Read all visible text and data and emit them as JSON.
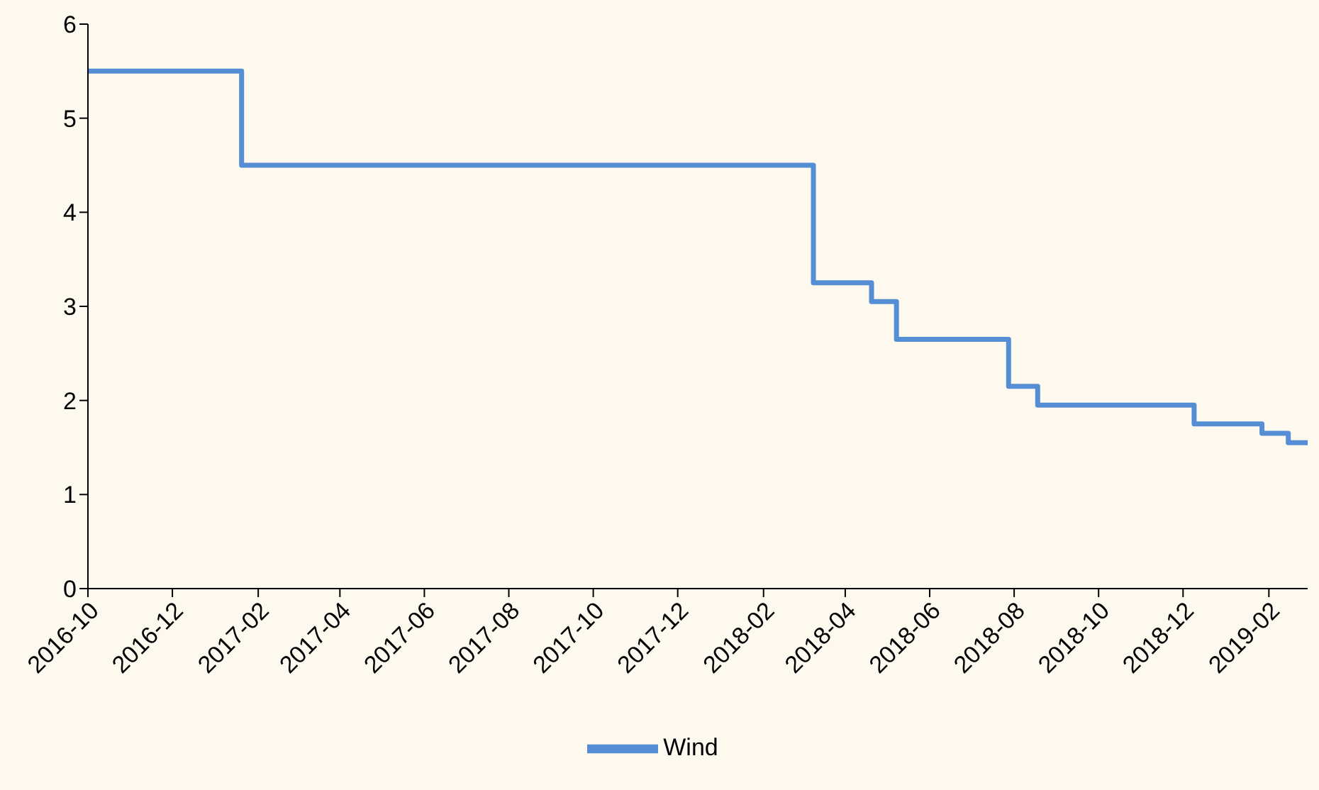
{
  "chart_data": {
    "type": "step",
    "x": [
      "2016-10-01",
      "2017-01-20",
      "2018-03-09",
      "2018-04-20",
      "2018-05-08",
      "2018-07-28",
      "2018-08-18",
      "2018-12-09",
      "2019-01-27",
      "2019-02-15",
      "2019-03-01"
    ],
    "series": [
      {
        "name": "Wind",
        "color": "#558ed5",
        "values": [
          5.5,
          4.5,
          3.25,
          3.05,
          2.65,
          2.15,
          1.95,
          1.75,
          1.65,
          1.55,
          1.55
        ]
      }
    ],
    "xlim": [
      "2016-10-01",
      "2019-03-01"
    ],
    "xticks": [
      "2016-10",
      "2016-12",
      "2017-02",
      "2017-04",
      "2017-06",
      "2017-08",
      "2017-10",
      "2017-12",
      "2018-02",
      "2018-04",
      "2018-06",
      "2018-08",
      "2018-10",
      "2018-12",
      "2019-02"
    ],
    "ylim": [
      0,
      6
    ],
    "yticks": [
      0,
      1,
      2,
      3,
      4,
      5,
      6
    ],
    "grid": false,
    "legend": "bottom",
    "marker": "none",
    "line_style": "solid"
  }
}
